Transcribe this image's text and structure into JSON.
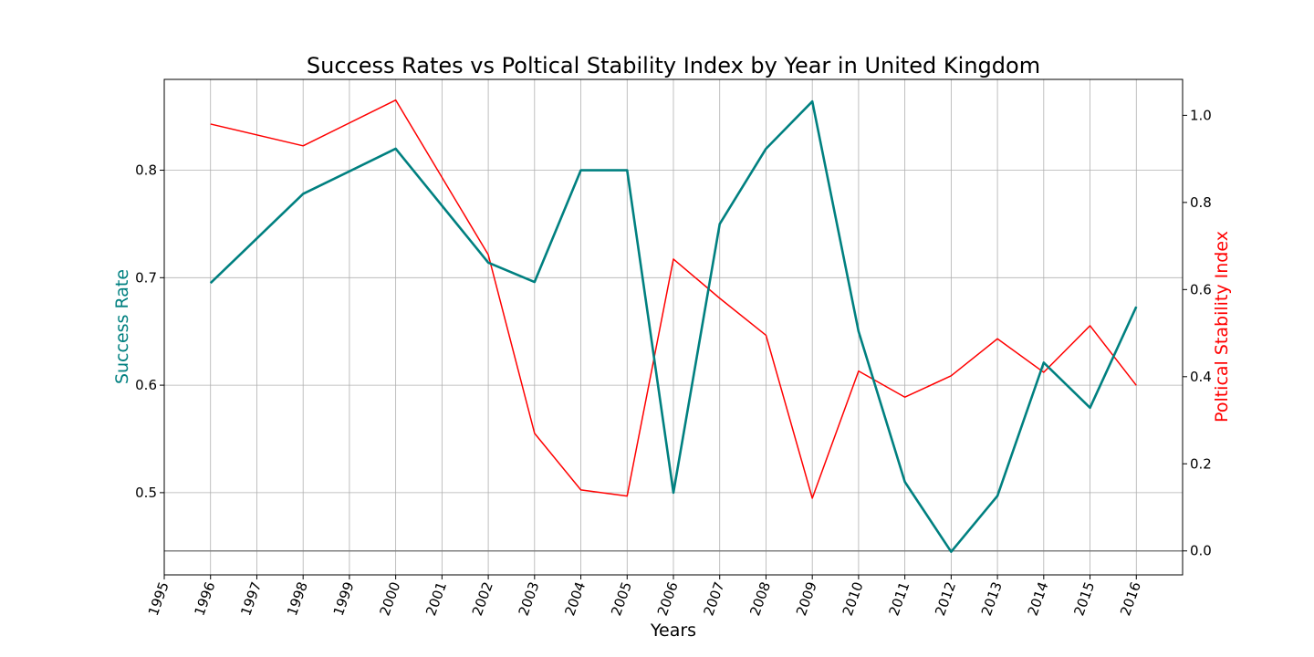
{
  "chart_data": {
    "type": "line",
    "title": "Success Rates vs Poltical Stability Index by Year in United Kingdom",
    "xlabel": "Years",
    "ylabel_left": "Success Rate",
    "ylabel_right": "Poltical Stability Index",
    "x_ticks": [
      1995,
      1996,
      1997,
      1998,
      1999,
      2000,
      2001,
      2002,
      2003,
      2004,
      2005,
      2006,
      2007,
      2008,
      2009,
      2010,
      2011,
      2012,
      2013,
      2014,
      2015,
      2016
    ],
    "x_range": [
      1995,
      2017
    ],
    "left_axis": {
      "ylim": [
        0.4235,
        0.8845
      ],
      "ticks": [
        0.5,
        0.6,
        0.7,
        0.8
      ]
    },
    "right_axis": {
      "ylim": [
        -0.055,
        1.0825
      ],
      "ticks": [
        0.0,
        0.2,
        0.4,
        0.6,
        0.8,
        1.0
      ]
    },
    "grid": true,
    "colors": {
      "success": "#008080",
      "stability": "#ff0000",
      "grid": "#b0b0b0",
      "baseline": "#808080"
    },
    "series": [
      {
        "axis": "left",
        "x": [
          1996,
          1998,
          2000,
          2002,
          2003,
          2004,
          2005,
          2006,
          2007,
          2008,
          2009,
          2010,
          2011,
          2012,
          2013,
          2014,
          2015,
          2016
        ],
        "values": [
          0.695,
          0.778,
          0.82,
          0.714,
          0.696,
          0.8,
          0.8,
          0.5,
          0.75,
          0.82,
          0.864,
          0.65,
          0.51,
          0.445,
          0.497,
          0.621,
          0.579,
          0.673
        ]
      },
      {
        "axis": "right",
        "x": [
          1996,
          1998,
          2000,
          2002,
          2003,
          2004,
          2005,
          2006,
          2007,
          2008,
          2009,
          2010,
          2011,
          2012,
          2013,
          2014,
          2015,
          2016
        ],
        "values": [
          0.98,
          0.93,
          1.035,
          0.68,
          0.27,
          0.14,
          0.126,
          0.67,
          0.58,
          0.495,
          0.121,
          0.413,
          0.353,
          0.402,
          0.487,
          0.41,
          0.517,
          0.38
        ]
      }
    ],
    "reference_line": {
      "axis": "right",
      "value": 0.0
    }
  }
}
